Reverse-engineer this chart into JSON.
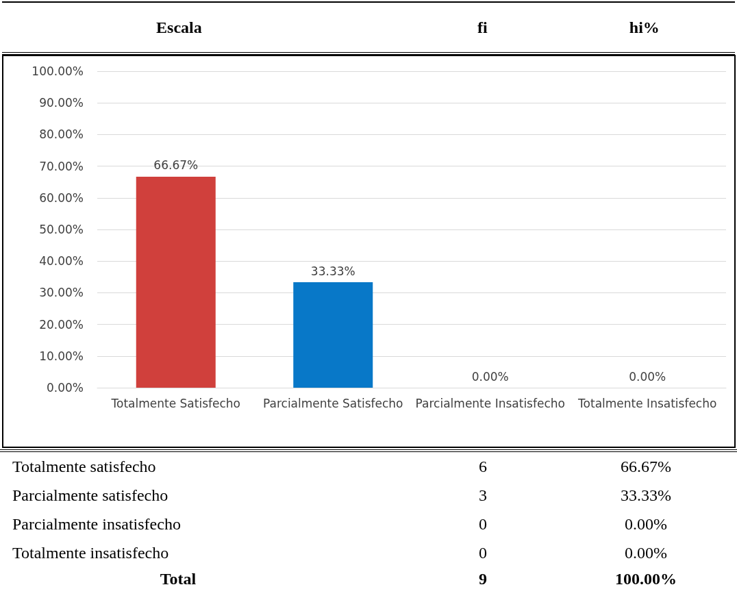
{
  "chart_data": {
    "type": "bar",
    "categories": [
      "Totalmente Satisfecho",
      "Parcialmente Satisfecho",
      "Parcialmente Insatisfecho",
      "Totalmente Insatisfecho"
    ],
    "values": [
      66.67,
      33.33,
      0,
      0
    ],
    "colors": [
      "#d0403c",
      "#0878c8",
      "#d0403c",
      "#0878c8"
    ],
    "value_labels": [
      "66.67%",
      "33.33%",
      "0.00%",
      "0.00%"
    ],
    "ylim": [
      0,
      100
    ],
    "yticks": [
      {
        "value": 0,
        "label": "0.00%"
      },
      {
        "value": 10,
        "label": "10.00%"
      },
      {
        "value": 20,
        "label": "20.00%"
      },
      {
        "value": 30,
        "label": "30.00%"
      },
      {
        "value": 40,
        "label": "40.00%"
      },
      {
        "value": 50,
        "label": "50.00%"
      },
      {
        "value": 60,
        "label": "60.00%"
      },
      {
        "value": 70,
        "label": "70.00%"
      },
      {
        "value": 80,
        "label": "80.00%"
      },
      {
        "value": 90,
        "label": "90.00%"
      },
      {
        "value": 100,
        "label": "100.00%"
      }
    ],
    "grid": "y",
    "annotations": [
      "Escala",
      "fi",
      "hi%",
      "Totalmente satisfecho",
      "6",
      "66.67%",
      "Parcialmente satisfecho",
      "3",
      "33.33%",
      "Parcialmente insatisfecho",
      "0",
      "0.00%",
      "Totalmente insatisfecho",
      "0",
      "0.00%",
      "Total",
      "9",
      "100.00%"
    ]
  }
}
